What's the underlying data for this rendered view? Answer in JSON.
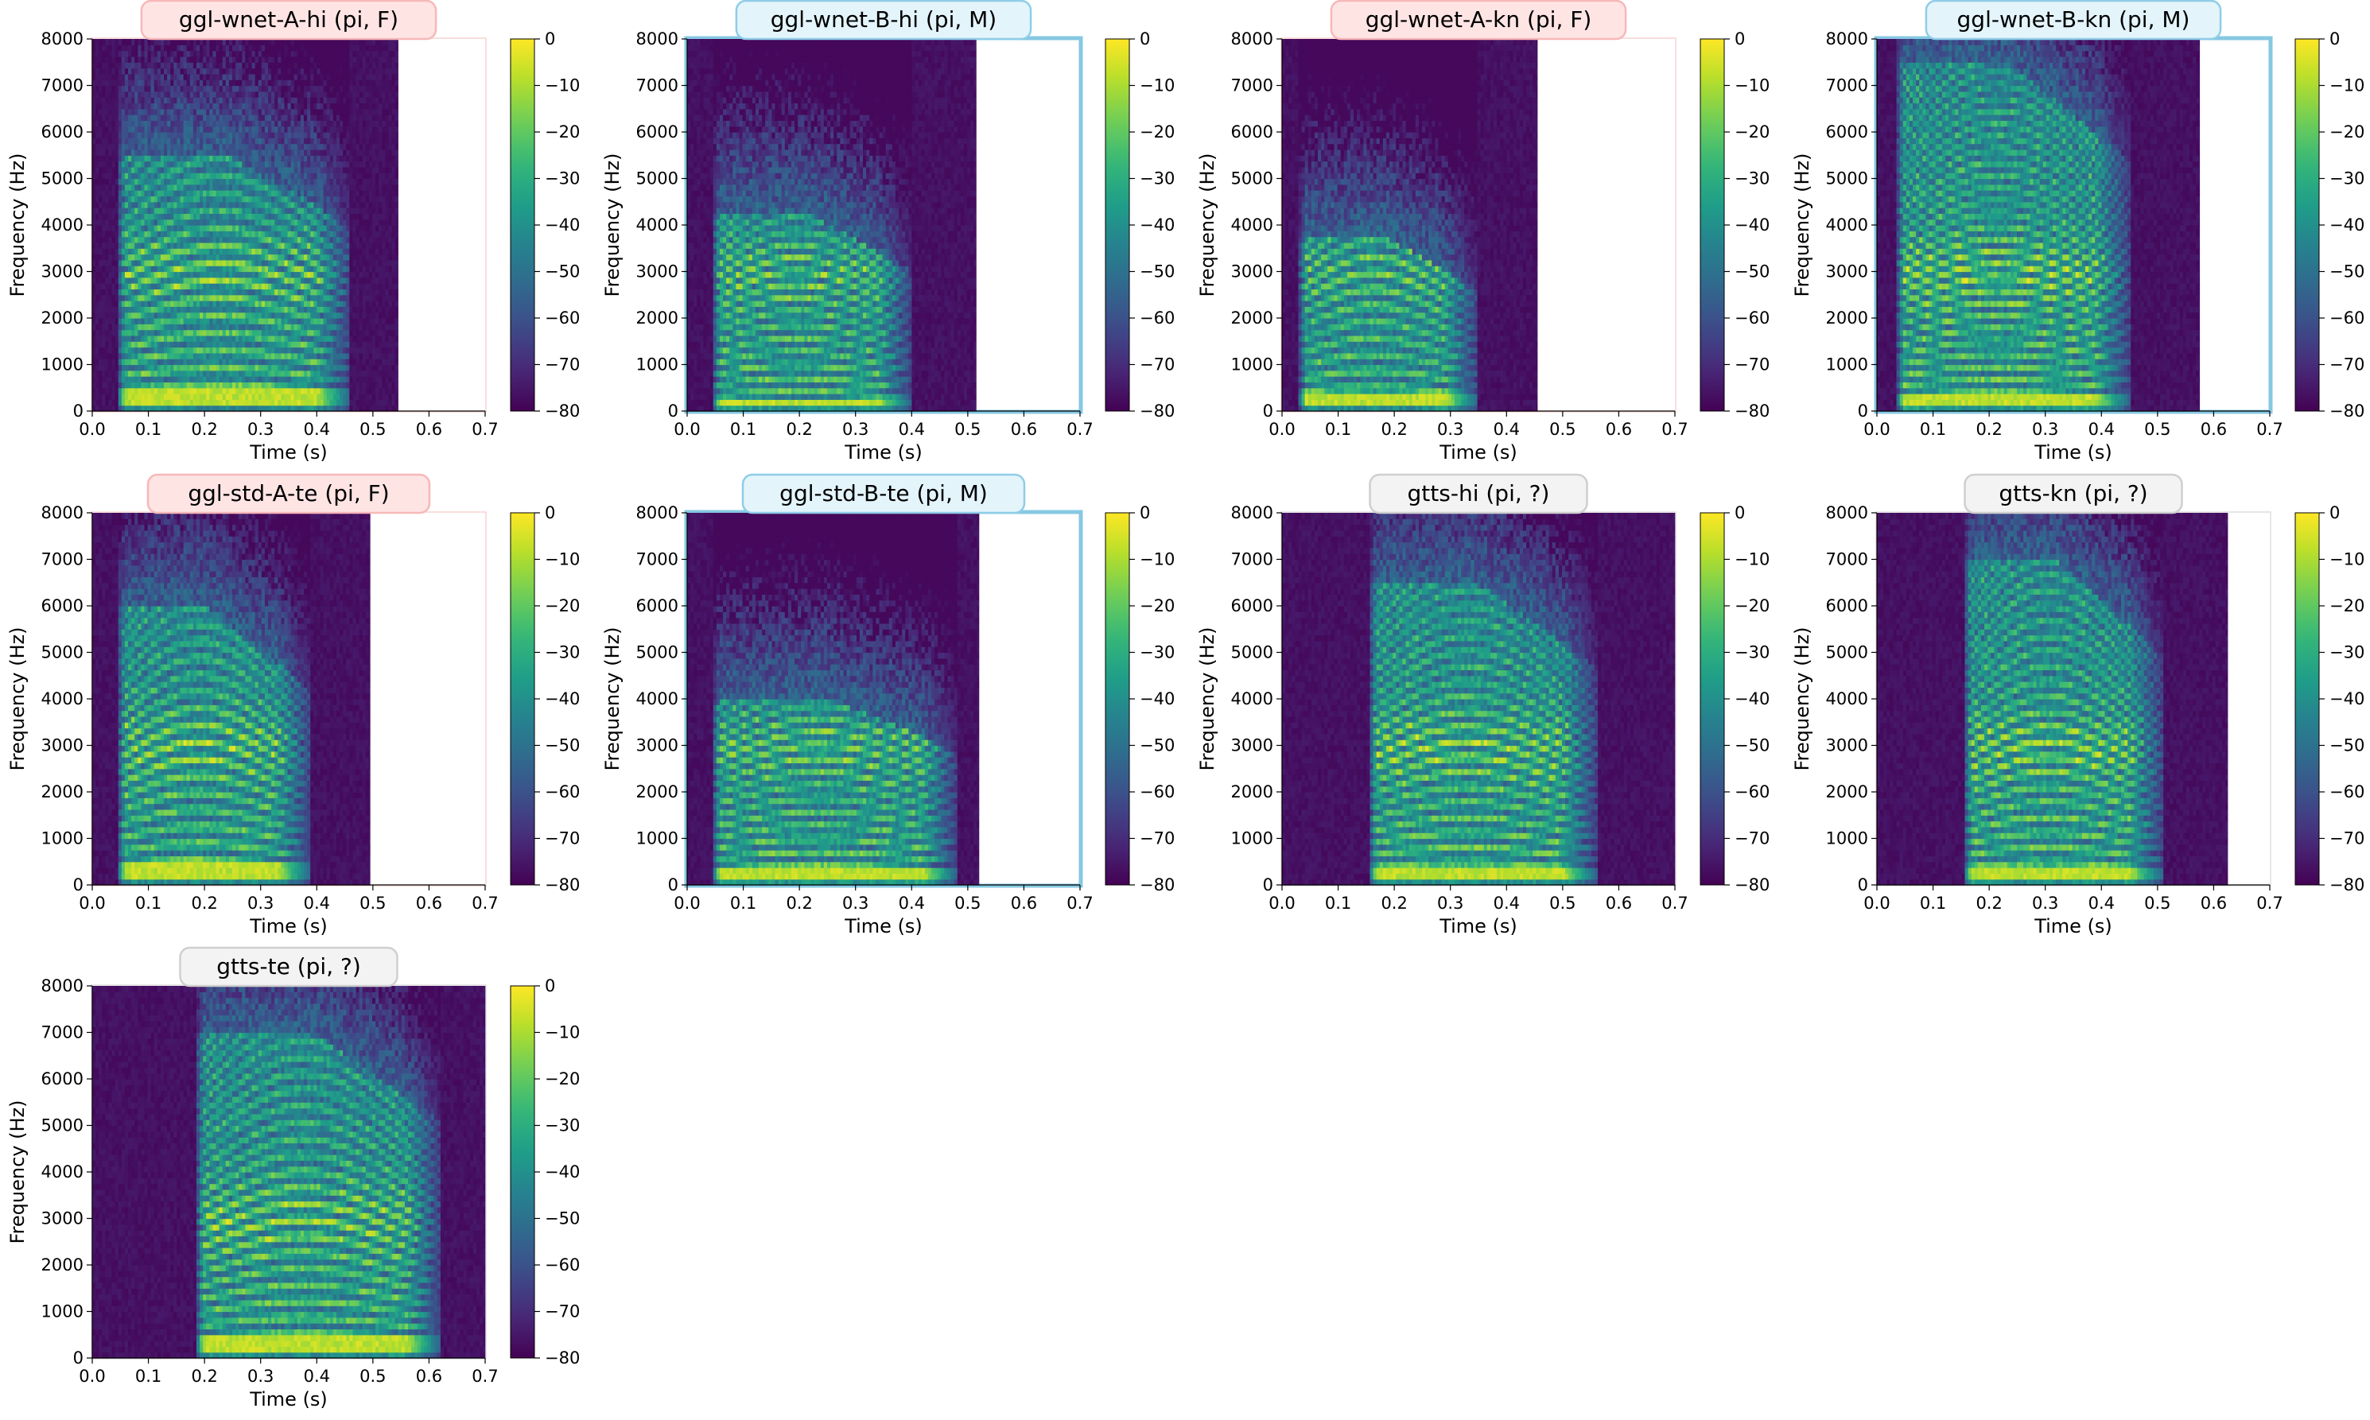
{
  "colors": {
    "female_fill": "#ffe4e4",
    "female_stroke": "#f7b8b8",
    "male_fill": "#e3f4fb",
    "male_stroke": "#8fcde7",
    "unknown_fill": "#f3f3f3",
    "unknown_stroke": "#cfcfcf",
    "male_frame": "#86c8e2",
    "female_frame": "#f7d3d3",
    "unknown_frame": "#dddddd",
    "viridis_low": "#440154",
    "viridis_high": "#fde725"
  },
  "chart_data": [
    {
      "type": "heatmap",
      "title": "ggl-wnet-A-hi (pi, F)",
      "speaker": "F",
      "xlabel": "Time (s)",
      "ylabel": "Frequency (Hz)",
      "xlim": [
        0,
        0.7
      ],
      "ylim": [
        0,
        8000
      ],
      "x_ticks": [
        "0.0",
        "0.1",
        "0.2",
        "0.3",
        "0.4",
        "0.5",
        "0.6",
        "0.7"
      ],
      "y_ticks": [
        "0",
        "1000",
        "2000",
        "3000",
        "4000",
        "5000",
        "6000",
        "7000",
        "8000"
      ],
      "colorbar_ticks": [
        "0",
        "−10",
        "−20",
        "−30",
        "−40",
        "−50",
        "−60",
        "−70",
        "−80"
      ],
      "colorbar_range": [
        -80,
        0
      ],
      "signal_end": 0.545,
      "onset": 0.05,
      "speech_end": 0.4,
      "formant_top": 5500,
      "f0": 300,
      "harmonic_spacing": 300,
      "frame": "F"
    },
    {
      "type": "heatmap",
      "title": "ggl-wnet-B-hi (pi, M)",
      "speaker": "M",
      "xlabel": "Time (s)",
      "ylabel": "Frequency (Hz)",
      "xlim": [
        0,
        0.7
      ],
      "ylim": [
        0,
        8000
      ],
      "x_ticks": [
        "0.0",
        "0.1",
        "0.2",
        "0.3",
        "0.4",
        "0.5",
        "0.6",
        "0.7"
      ],
      "y_ticks": [
        "0",
        "1000",
        "2000",
        "3000",
        "4000",
        "5000",
        "6000",
        "7000",
        "8000"
      ],
      "colorbar_ticks": [
        "0",
        "−10",
        "−20",
        "−30",
        "−40",
        "−50",
        "−60",
        "−70",
        "−80"
      ],
      "colorbar_range": [
        -80,
        0
      ],
      "signal_end": 0.515,
      "onset": 0.05,
      "speech_end": 0.34,
      "formant_top": 4300,
      "f0": 180,
      "harmonic_spacing": 230,
      "frame": "M"
    },
    {
      "type": "heatmap",
      "title": "ggl-wnet-A-kn (pi, F)",
      "speaker": "F",
      "xlabel": "Time (s)",
      "ylabel": "Frequency (Hz)",
      "xlim": [
        0,
        0.7
      ],
      "ylim": [
        0,
        8000
      ],
      "x_ticks": [
        "0.0",
        "0.1",
        "0.2",
        "0.3",
        "0.4",
        "0.5",
        "0.6",
        "0.7"
      ],
      "y_ticks": [
        "0",
        "1000",
        "2000",
        "3000",
        "4000",
        "5000",
        "6000",
        "7000",
        "8000"
      ],
      "colorbar_ticks": [
        "0",
        "−10",
        "−20",
        "−30",
        "−40",
        "−50",
        "−60",
        "−70",
        "−80"
      ],
      "colorbar_range": [
        -80,
        0
      ],
      "signal_end": 0.455,
      "onset": 0.035,
      "speech_end": 0.29,
      "formant_top": 3800,
      "f0": 260,
      "harmonic_spacing": 280,
      "frame": "F"
    },
    {
      "type": "heatmap",
      "title": "ggl-wnet-B-kn (pi, M)",
      "speaker": "M",
      "xlabel": "Time (s)",
      "ylabel": "Frequency (Hz)",
      "xlim": [
        0,
        0.7
      ],
      "ylim": [
        0,
        8000
      ],
      "x_ticks": [
        "0.0",
        "0.1",
        "0.2",
        "0.3",
        "0.4",
        "0.5",
        "0.6",
        "0.7"
      ],
      "y_ticks": [
        "0",
        "1000",
        "2000",
        "3000",
        "4000",
        "5000",
        "6000",
        "7000",
        "8000"
      ],
      "colorbar_ticks": [
        "0",
        "−10",
        "−20",
        "−30",
        "−40",
        "−50",
        "−60",
        "−70",
        "−80"
      ],
      "colorbar_range": [
        -80,
        0
      ],
      "signal_end": 0.575,
      "onset": 0.04,
      "speech_end": 0.39,
      "formant_top": 7500,
      "f0": 200,
      "harmonic_spacing": 220,
      "frame": "M"
    },
    {
      "type": "heatmap",
      "title": "ggl-std-A-te (pi, F)",
      "speaker": "F",
      "xlabel": "Time (s)",
      "ylabel": "Frequency (Hz)",
      "xlim": [
        0,
        0.7
      ],
      "ylim": [
        0,
        8000
      ],
      "x_ticks": [
        "0.0",
        "0.1",
        "0.2",
        "0.3",
        "0.4",
        "0.5",
        "0.6",
        "0.7"
      ],
      "y_ticks": [
        "0",
        "1000",
        "2000",
        "3000",
        "4000",
        "5000",
        "6000",
        "7000",
        "8000"
      ],
      "colorbar_ticks": [
        "0",
        "−10",
        "−20",
        "−30",
        "−40",
        "−50",
        "−60",
        "−70",
        "−80"
      ],
      "colorbar_range": [
        -80,
        0
      ],
      "signal_end": 0.495,
      "onset": 0.05,
      "speech_end": 0.33,
      "formant_top": 6000,
      "f0": 280,
      "harmonic_spacing": 290,
      "frame": "F"
    },
    {
      "type": "heatmap",
      "title": "ggl-std-B-te (pi, M)",
      "speaker": "M",
      "xlabel": "Time (s)",
      "ylabel": "Frequency (Hz)",
      "xlim": [
        0,
        0.7
      ],
      "ylim": [
        0,
        8000
      ],
      "x_ticks": [
        "0.0",
        "0.1",
        "0.2",
        "0.3",
        "0.4",
        "0.5",
        "0.6",
        "0.7"
      ],
      "y_ticks": [
        "0",
        "1000",
        "2000",
        "3000",
        "4000",
        "5000",
        "6000",
        "7000",
        "8000"
      ],
      "colorbar_ticks": [
        "0",
        "−10",
        "−20",
        "−30",
        "−40",
        "−50",
        "−60",
        "−70",
        "−80"
      ],
      "colorbar_range": [
        -80,
        0
      ],
      "signal_end": 0.52,
      "onset": 0.05,
      "speech_end": 0.42,
      "formant_top": 4000,
      "f0": 220,
      "harmonic_spacing": 230,
      "frame": "M"
    },
    {
      "type": "heatmap",
      "title": "gtts-hi (pi, ?)",
      "speaker": "?",
      "xlabel": "Time (s)",
      "ylabel": "Frequency (Hz)",
      "xlim": [
        0,
        0.7
      ],
      "ylim": [
        0,
        8000
      ],
      "x_ticks": [
        "0.0",
        "0.1",
        "0.2",
        "0.3",
        "0.4",
        "0.5",
        "0.6",
        "0.7"
      ],
      "y_ticks": [
        "0",
        "1000",
        "2000",
        "3000",
        "4000",
        "5000",
        "6000",
        "7000",
        "8000"
      ],
      "colorbar_ticks": [
        "0",
        "−10",
        "−20",
        "−30",
        "−40",
        "−50",
        "−60",
        "−70",
        "−80"
      ],
      "colorbar_range": [
        -80,
        0
      ],
      "signal_end": 0.7,
      "onset": 0.16,
      "speech_end": 0.5,
      "formant_top": 6500,
      "f0": 260,
      "harmonic_spacing": 260,
      "frame": "?"
    },
    {
      "type": "heatmap",
      "title": "gtts-kn (pi, ?)",
      "speaker": "?",
      "xlabel": "Time (s)",
      "ylabel": "Frequency (Hz)",
      "xlim": [
        0,
        0.7
      ],
      "ylim": [
        0,
        8000
      ],
      "x_ticks": [
        "0.0",
        "0.1",
        "0.2",
        "0.3",
        "0.4",
        "0.5",
        "0.6",
        "0.7"
      ],
      "y_ticks": [
        "0",
        "1000",
        "2000",
        "3000",
        "4000",
        "5000",
        "6000",
        "7000",
        "8000"
      ],
      "colorbar_ticks": [
        "0",
        "−10",
        "−20",
        "−30",
        "−40",
        "−50",
        "−60",
        "−70",
        "−80"
      ],
      "colorbar_range": [
        -80,
        0
      ],
      "signal_end": 0.625,
      "onset": 0.16,
      "speech_end": 0.45,
      "formant_top": 7000,
      "f0": 260,
      "harmonic_spacing": 260,
      "frame": "?"
    },
    {
      "type": "heatmap",
      "title": "gtts-te (pi, ?)",
      "speaker": "?",
      "xlabel": "Time (s)",
      "ylabel": "Frequency (Hz)",
      "xlim": [
        0,
        0.7
      ],
      "ylim": [
        0,
        8000
      ],
      "x_ticks": [
        "0.0",
        "0.1",
        "0.2",
        "0.3",
        "0.4",
        "0.5",
        "0.6",
        "0.7"
      ],
      "y_ticks": [
        "0",
        "1000",
        "2000",
        "3000",
        "4000",
        "5000",
        "6000",
        "7000",
        "8000"
      ],
      "colorbar_ticks": [
        "0",
        "−10",
        "−20",
        "−30",
        "−40",
        "−50",
        "−60",
        "−70",
        "−80"
      ],
      "colorbar_range": [
        -80,
        0
      ],
      "signal_end": 0.7,
      "onset": 0.19,
      "speech_end": 0.56,
      "formant_top": 7000,
      "f0": 280,
      "harmonic_spacing": 280,
      "frame": "?"
    }
  ]
}
